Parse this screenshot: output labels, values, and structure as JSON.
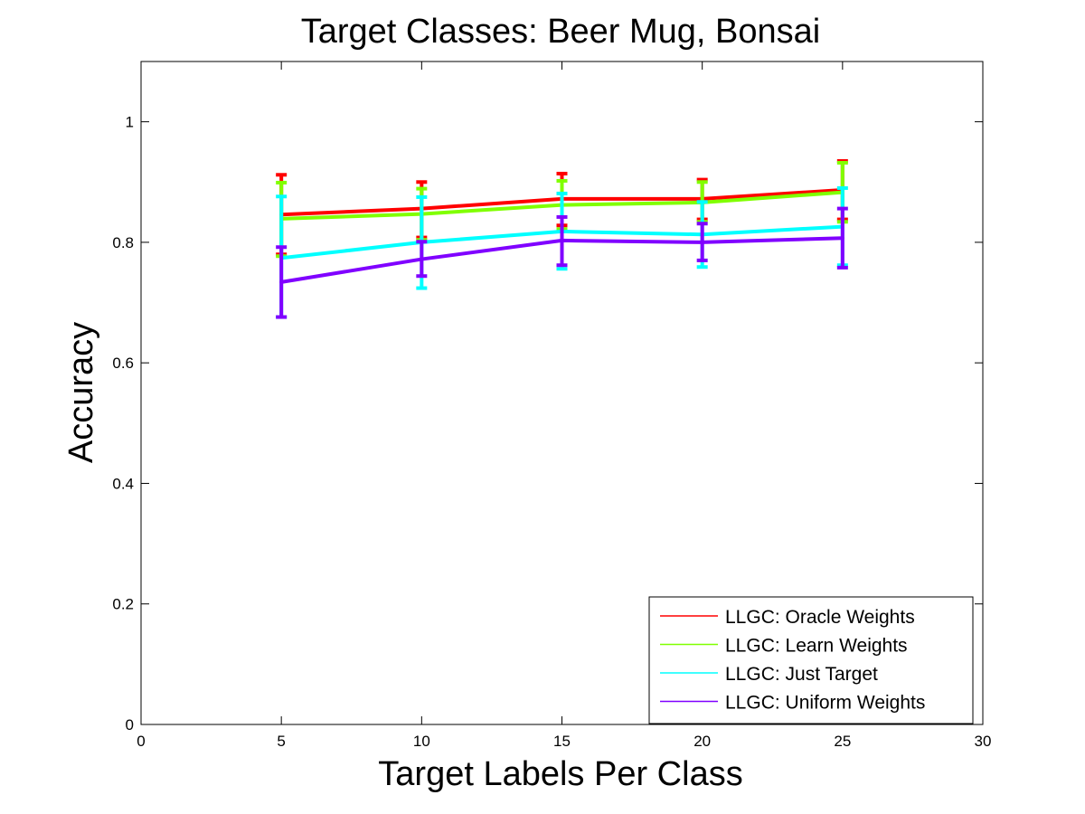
{
  "chart_data": {
    "type": "line",
    "title": "Target Classes: Beer Mug, Bonsai",
    "xlabel": "Target Labels Per Class",
    "ylabel": "Accuracy",
    "xlim": [
      0,
      30
    ],
    "ylim": [
      0,
      1.1
    ],
    "xticks": [
      0,
      5,
      10,
      15,
      20,
      25,
      30
    ],
    "xtick_labels": [
      "0",
      "5",
      "10",
      "15",
      "20",
      "25",
      "30"
    ],
    "yticks": [
      0,
      0.2,
      0.4,
      0.6,
      0.8,
      1
    ],
    "ytick_labels": [
      "0",
      "0.2",
      "0.4",
      "0.6",
      "0.8",
      "1"
    ],
    "grid": false,
    "legend_position": "bottom-right",
    "x": [
      5,
      10,
      15,
      20,
      25
    ],
    "series": [
      {
        "name": "LLGC: Oracle Weights",
        "color": "#ff0000",
        "values": [
          0.846,
          0.856,
          0.872,
          0.872,
          0.887
        ],
        "err_low": [
          0.78,
          0.808,
          0.828,
          0.838,
          0.838
        ],
        "err_high": [
          0.912,
          0.9,
          0.914,
          0.904,
          0.935
        ]
      },
      {
        "name": "LLGC: Learn Weights",
        "color": "#80ff00",
        "values": [
          0.839,
          0.847,
          0.862,
          0.866,
          0.883
        ],
        "err_low": [
          0.777,
          0.804,
          0.822,
          0.834,
          0.834
        ],
        "err_high": [
          0.899,
          0.889,
          0.902,
          0.9,
          0.932
        ]
      },
      {
        "name": "LLGC: Just Target",
        "color": "#00ffff",
        "values": [
          0.774,
          0.8,
          0.818,
          0.813,
          0.826
        ],
        "err_low": [
          0.676,
          0.724,
          0.756,
          0.759,
          0.762
        ],
        "err_high": [
          0.876,
          0.875,
          0.881,
          0.867,
          0.89
        ]
      },
      {
        "name": "LLGC: Uniform Weights",
        "color": "#8000ff",
        "values": [
          0.734,
          0.772,
          0.803,
          0.8,
          0.807
        ],
        "err_low": [
          0.676,
          0.744,
          0.762,
          0.77,
          0.758
        ],
        "err_high": [
          0.792,
          0.801,
          0.842,
          0.831,
          0.856
        ]
      }
    ]
  }
}
